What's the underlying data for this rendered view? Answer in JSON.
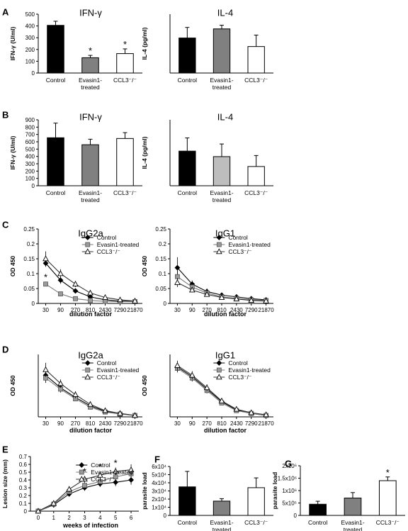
{
  "panel_letters": [
    "A",
    "B",
    "C",
    "D",
    "E",
    "F",
    "G"
  ],
  "colors": {
    "black": "#000000",
    "gray": "#808080",
    "lightgray": "#bdbdbd",
    "white": "#ffffff"
  },
  "chart_data": [
    {
      "id": "A1",
      "panel": "A",
      "type": "bar",
      "title": "IFN-γ",
      "ylabel": "IFN-γ (U/ml)",
      "ylim": [
        0,
        500
      ],
      "yticks": [
        0,
        100,
        200,
        300,
        400,
        500
      ],
      "categories": [
        [
          "Control"
        ],
        [
          "Evasin1-",
          "treated"
        ],
        [
          "CCL3⁻/⁻"
        ]
      ],
      "values": [
        405,
        130,
        165
      ],
      "errors": [
        35,
        20,
        40
      ],
      "fills": [
        "black",
        "gray",
        "white"
      ],
      "asterisks": [
        "",
        "*",
        "*"
      ]
    },
    {
      "id": "A2",
      "panel": "",
      "type": "bar",
      "title": "IL-4",
      "ylabel": "IL-4 (pg/ml)",
      "ylim": [
        0,
        400
      ],
      "yticks": [],
      "categories": [
        [
          "Control"
        ],
        [
          "Evasin1-",
          "treated"
        ],
        [
          "CCL3⁻/⁻"
        ]
      ],
      "values": [
        238,
        300,
        180
      ],
      "errors": [
        72,
        25,
        78
      ],
      "fills": [
        "black",
        "gray",
        "white"
      ],
      "asterisks": [
        "",
        "",
        ""
      ]
    },
    {
      "id": "B1",
      "panel": "B",
      "type": "bar",
      "title": "IFN-γ",
      "ylabel": "IFN-γ (U/ml)",
      "ylim": [
        0,
        900
      ],
      "yticks": [
        0,
        100,
        200,
        300,
        400,
        500,
        600,
        700,
        800,
        900
      ],
      "categories": [
        [
          "Control"
        ],
        [
          "Evasin1-",
          "treated"
        ],
        [
          "CCL3⁻/⁻"
        ]
      ],
      "values": [
        655,
        560,
        645
      ],
      "errors": [
        200,
        75,
        80
      ],
      "fills": [
        "black",
        "gray",
        "white"
      ],
      "asterisks": [
        "",
        "",
        ""
      ]
    },
    {
      "id": "B2",
      "panel": "",
      "type": "bar",
      "title": "IL-4",
      "ylabel": "IL-4 (pg/ml)",
      "ylim": [
        0,
        600
      ],
      "yticks": [],
      "categories": [
        [
          "Control"
        ],
        [
          "Evasin1-",
          "treated"
        ],
        [
          "CCL3⁻/⁻"
        ]
      ],
      "values": [
        315,
        265,
        175
      ],
      "errors": [
        120,
        115,
        100
      ],
      "fills": [
        "black",
        "lightgray",
        "white"
      ],
      "asterisks": [
        "",
        "",
        ""
      ]
    },
    {
      "id": "C1",
      "panel": "C",
      "type": "line",
      "title": "IgG2a",
      "ylabel": "OD 450",
      "xlabel": "dilution factor",
      "ylim": [
        0,
        0.25
      ],
      "yticks": [
        "0",
        "0.05",
        "0.1",
        "0.15",
        "0.2",
        "0.25"
      ],
      "x": [
        "30",
        "90",
        "270",
        "810",
        "2430",
        "7290",
        "21870"
      ],
      "series": [
        {
          "name": "Control",
          "marker": "diamond",
          "values": [
            0.135,
            0.078,
            0.042,
            0.022,
            0.012,
            0.008,
            0.007
          ],
          "errors": [
            0.012,
            0.012,
            0.008,
            0.005,
            0.004,
            0.003,
            0.003
          ]
        },
        {
          "name": "Evasin1-treated",
          "marker": "square",
          "values": [
            0.065,
            0.032,
            0.016,
            0.01,
            0.007,
            0.006,
            0.006
          ],
          "errors": [
            0.008,
            0.006,
            0.004,
            0.003,
            0.003,
            0.003,
            0.003
          ]
        },
        {
          "name": "CCL3⁻/⁻",
          "marker": "triangle",
          "values": [
            0.15,
            0.1,
            0.065,
            0.035,
            0.02,
            0.012,
            0.008
          ],
          "errors": [
            0.025,
            0.015,
            0.01,
            0.008,
            0.005,
            0.004,
            0.003
          ]
        }
      ],
      "annotations": [
        {
          "series": 1,
          "point": 0,
          "text": "*"
        }
      ]
    },
    {
      "id": "C2",
      "panel": "",
      "type": "line",
      "title": "IgG1",
      "ylabel": "OD 450",
      "xlabel": "dilution factor",
      "ylim": [
        0,
        0.25
      ],
      "yticks": [
        "0",
        "0.05",
        "0.1",
        "0.15",
        "0.2",
        "0.25"
      ],
      "x": [
        "30",
        "90",
        "270",
        "810",
        "2430",
        "7290",
        "21870"
      ],
      "series": [
        {
          "name": "Control",
          "marker": "diamond",
          "values": [
            0.12,
            0.065,
            0.04,
            0.028,
            0.022,
            0.016,
            0.012
          ],
          "errors": [
            0.035,
            0.012,
            0.01,
            0.006,
            0.005,
            0.004,
            0.003
          ]
        },
        {
          "name": "Evasin1-treated",
          "marker": "square",
          "values": [
            0.09,
            0.055,
            0.035,
            0.022,
            0.017,
            0.012,
            0.01
          ],
          "errors": [
            0.02,
            0.01,
            0.008,
            0.006,
            0.005,
            0.004,
            0.003
          ]
        },
        {
          "name": "CCL3⁻/⁻",
          "marker": "triangle",
          "values": [
            0.07,
            0.045,
            0.03,
            0.02,
            0.015,
            0.01,
            0.008
          ],
          "errors": [
            0.015,
            0.008,
            0.006,
            0.005,
            0.004,
            0.003,
            0.003
          ]
        }
      ],
      "annotations": []
    },
    {
      "id": "D1",
      "panel": "D",
      "type": "line",
      "title": "IgG2a",
      "ylabel": "OD 450",
      "xlabel": "dilution factor",
      "ylim": [
        0,
        0.9
      ],
      "yticks": [],
      "x": [
        "30",
        "90",
        "270",
        "810",
        "2430",
        "7290",
        "21870"
      ],
      "series": [
        {
          "name": "Control",
          "marker": "diamond",
          "values": [
            0.6,
            0.42,
            0.28,
            0.16,
            0.08,
            0.05,
            0.02
          ],
          "errors": [
            0.08,
            0.05,
            0.04,
            0.02,
            0.01,
            0.01,
            0.01
          ]
        },
        {
          "name": "Evasin1-treated",
          "marker": "square",
          "values": [
            0.56,
            0.4,
            0.26,
            0.14,
            0.07,
            0.04,
            0.02
          ],
          "errors": [
            0.07,
            0.05,
            0.03,
            0.02,
            0.01,
            0.01,
            0.01
          ]
        },
        {
          "name": "CCL3⁻/⁻",
          "marker": "triangle",
          "values": [
            0.68,
            0.48,
            0.32,
            0.18,
            0.09,
            0.05,
            0.02
          ],
          "errors": [
            0.1,
            0.06,
            0.05,
            0.03,
            0.01,
            0.01,
            0.01
          ]
        }
      ],
      "annotations": []
    },
    {
      "id": "D2",
      "panel": "",
      "type": "line",
      "title": "IgG1",
      "ylabel": "OD 450",
      "xlabel": "dilution factor",
      "ylim": [
        0,
        0.9
      ],
      "yticks": [],
      "x": [
        "30",
        "90",
        "270",
        "810",
        "2430",
        "7290",
        "21870"
      ],
      "series": [
        {
          "name": "Control",
          "marker": "diamond",
          "values": [
            0.72,
            0.58,
            0.4,
            0.22,
            0.1,
            0.05,
            0.02
          ],
          "errors": [
            0.06,
            0.06,
            0.05,
            0.03,
            0.02,
            0.01,
            0.01
          ]
        },
        {
          "name": "Evasin1-treated",
          "marker": "square",
          "values": [
            0.7,
            0.56,
            0.38,
            0.2,
            0.09,
            0.05,
            0.02
          ],
          "errors": [
            0.06,
            0.05,
            0.04,
            0.03,
            0.02,
            0.01,
            0.01
          ]
        },
        {
          "name": "CCL3⁻/⁻",
          "marker": "triangle",
          "values": [
            0.74,
            0.6,
            0.42,
            0.23,
            0.11,
            0.06,
            0.03
          ],
          "errors": [
            0.07,
            0.06,
            0.05,
            0.03,
            0.02,
            0.01,
            0.01
          ]
        }
      ],
      "annotations": []
    },
    {
      "id": "E",
      "panel": "E",
      "type": "line",
      "title": "",
      "ylabel": "Lesion size (mm)",
      "xlabel": "weeks of infection",
      "ylim": [
        0,
        0.7
      ],
      "yticks": [
        "0",
        "0.1",
        "0.2",
        "0.3",
        "0.4",
        "0.5",
        "0.6",
        "0.7"
      ],
      "x": [
        "0",
        "1",
        "2",
        "3",
        "4",
        "5",
        "6"
      ],
      "series": [
        {
          "name": "Control",
          "marker": "diamond",
          "values": [
            0,
            0.08,
            0.22,
            0.3,
            0.35,
            0.37,
            0.4
          ],
          "errors": [
            0.01,
            0.02,
            0.03,
            0.04,
            0.04,
            0.05,
            0.06
          ]
        },
        {
          "name": "Evasin1-treated",
          "marker": "square",
          "values": [
            0,
            0.09,
            0.25,
            0.33,
            0.38,
            0.44,
            0.48
          ],
          "errors": [
            0.01,
            0.02,
            0.03,
            0.04,
            0.05,
            0.05,
            0.06
          ]
        },
        {
          "name": "CCL3⁻/⁻",
          "marker": "triangle",
          "values": [
            0,
            0.1,
            0.28,
            0.41,
            0.46,
            0.51,
            0.53
          ],
          "errors": [
            0.01,
            0.02,
            0.04,
            0.04,
            0.05,
            0.05,
            0.07
          ]
        }
      ],
      "annotations": [
        {
          "series": 2,
          "point": 3,
          "text": "*"
        },
        {
          "series": 2,
          "point": 4,
          "text": "*"
        },
        {
          "series": 2,
          "point": 5,
          "text": "*"
        }
      ]
    },
    {
      "id": "F",
      "panel": "F",
      "type": "bar",
      "title": "",
      "ylabel": "parasite load",
      "ylim": [
        0,
        60000
      ],
      "yticks": [
        "0",
        "1x10⁴",
        "2x10⁴",
        "3x10⁴",
        "4x10⁴",
        "5x10⁴",
        "6x10⁴"
      ],
      "categories": [
        [
          "Control"
        ],
        [
          "Evasin1-",
          "treated"
        ],
        [
          "CCL3⁻/⁻"
        ]
      ],
      "values": [
        35000,
        17500,
        34000
      ],
      "errors": [
        19000,
        3000,
        12000
      ],
      "fills": [
        "black",
        "gray",
        "white"
      ],
      "asterisks": [
        "",
        "",
        ""
      ]
    },
    {
      "id": "G",
      "panel": "G",
      "type": "bar",
      "title": "",
      "ylabel": "parasite load",
      "ylim": [
        0,
        2000000
      ],
      "yticks": [
        "0",
        "5x10⁵",
        "1x10⁶",
        "1.5x10⁶",
        "2x10⁶"
      ],
      "categories": [
        [
          "Control"
        ],
        [
          "Evasin1-",
          "treated"
        ],
        [
          "CCL3⁻/⁻"
        ]
      ],
      "values": [
        450000,
        700000,
        1400000
      ],
      "errors": [
        120000,
        220000,
        150000
      ],
      "fills": [
        "black",
        "gray",
        "white"
      ],
      "asterisks": [
        "",
        "",
        "*"
      ]
    }
  ]
}
